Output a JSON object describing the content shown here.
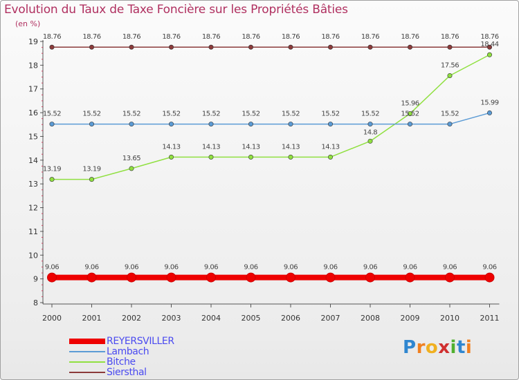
{
  "title": "Evolution du Taux de Taxe Foncière sur les Propriétés Bâties",
  "unit_label": "(en %)",
  "chart_data": {
    "type": "line",
    "title": "Evolution du Taux de Taxe Foncière sur les Propriétés Bâties",
    "ylabel": "(en %)",
    "xlabel": "",
    "ylim": [
      8,
      19
    ],
    "yticks": [
      "8",
      "9",
      "10",
      "11",
      "12",
      "13",
      "14",
      "15",
      "16",
      "17",
      "18",
      "19"
    ],
    "categories": [
      "2000",
      "2001",
      "2002",
      "2003",
      "2004",
      "2005",
      "2006",
      "2007",
      "2008",
      "2009",
      "2010",
      "2011"
    ],
    "series": [
      {
        "name": "REYERSVILLER",
        "color": "#ee0000",
        "style": "bold",
        "values": [
          9.06,
          9.06,
          9.06,
          9.06,
          9.06,
          9.06,
          9.06,
          9.06,
          9.06,
          9.06,
          9.06,
          9.06
        ],
        "labels": [
          "9.06",
          "9.06",
          "9.06",
          "9.06",
          "9.06",
          "9.06",
          "9.06",
          "9.06",
          "9.06",
          "9.06",
          "9.06",
          "9.06"
        ]
      },
      {
        "name": "Lambach",
        "color": "#5b9bd5",
        "style": "thin",
        "values": [
          15.52,
          15.52,
          15.52,
          15.52,
          15.52,
          15.52,
          15.52,
          15.52,
          15.52,
          15.52,
          15.52,
          15.99
        ],
        "labels": [
          "15.52",
          "15.52",
          "15.52",
          "15.52",
          "15.52",
          "15.52",
          "15.52",
          "15.52",
          "15.52",
          "15.52",
          "15.52",
          "15.99"
        ]
      },
      {
        "name": "Bitche",
        "color": "#90e040",
        "style": "thin",
        "values": [
          13.19,
          13.19,
          13.65,
          14.13,
          14.13,
          14.13,
          14.13,
          14.13,
          14.8,
          15.96,
          17.56,
          18.44
        ],
        "labels": [
          "13.19",
          "13.19",
          "13.65",
          "14.13",
          "14.13",
          "14.13",
          "14.13",
          "14.13",
          "14.8",
          "15.96",
          "17.56",
          "18.44"
        ]
      },
      {
        "name": "Siersthal",
        "color": "#8b3a3a",
        "style": "thin",
        "values": [
          18.76,
          18.76,
          18.76,
          18.76,
          18.76,
          18.76,
          18.76,
          18.76,
          18.76,
          18.76,
          18.76,
          18.76
        ],
        "labels": [
          "18.76",
          "18.76",
          "18.76",
          "18.76",
          "18.76",
          "18.76",
          "18.76",
          "18.76",
          "18.76",
          "18.76",
          "18.76",
          "18.76"
        ]
      }
    ],
    "legend": [
      "REYERSVILLER",
      "Lambach",
      "Bitche",
      "Siersthal"
    ],
    "grid": false
  },
  "logo": {
    "letters": [
      "P",
      "r",
      "o",
      "x",
      "i",
      "t",
      "i"
    ],
    "colors": [
      "#2f86d0",
      "#f08020",
      "#f0b020",
      "#d03030",
      "#50b030",
      "#2f86d0",
      "#f08020"
    ]
  }
}
